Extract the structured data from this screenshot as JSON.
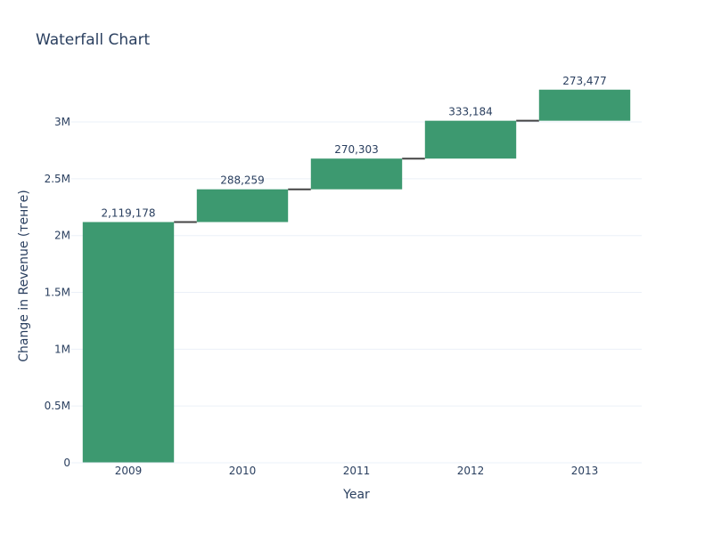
{
  "chart_data": {
    "type": "waterfall",
    "title": "Waterfall Chart",
    "xlabel": "Year",
    "ylabel": "Change in Revenue (тенге)",
    "categories": [
      "2009",
      "2010",
      "2011",
      "2012",
      "2013"
    ],
    "values": [
      2119178,
      288259,
      270303,
      333184,
      273477
    ],
    "data_labels": [
      "2,119,178",
      "288,259",
      "270,303",
      "333,184",
      "273,477"
    ],
    "ylim": [
      0,
      3400000
    ],
    "yticks": [
      0,
      500000,
      1000000,
      1500000,
      2000000,
      2500000,
      3000000
    ],
    "ytick_labels": [
      "0",
      "0.5M",
      "1M",
      "1.5M",
      "2M",
      "2.5M",
      "3M"
    ],
    "grid": true,
    "connectors": true,
    "colors": {
      "increase": "#3d9970",
      "connector": "#444444",
      "text": "#2a3f5f",
      "grid": "#ebf0f8"
    }
  }
}
